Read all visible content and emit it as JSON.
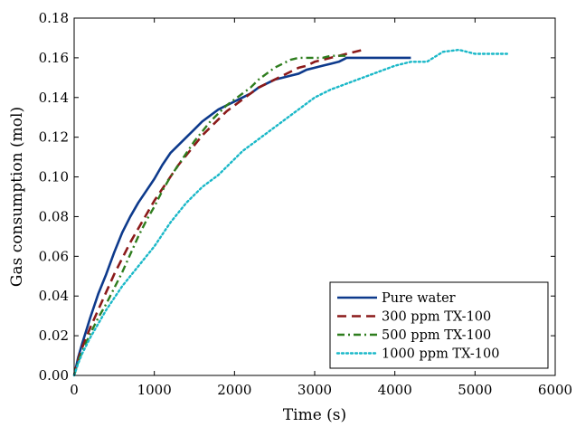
{
  "chart_data": {
    "type": "line",
    "xlabel": "Time (s)",
    "ylabel": "Gas consumption (mol)",
    "xlim": [
      0,
      6000
    ],
    "ylim": [
      0,
      0.18
    ],
    "xticks": [
      0,
      1000,
      2000,
      3000,
      4000,
      5000,
      6000
    ],
    "xtick_labels": [
      "0",
      "1000",
      "2000",
      "3000",
      "4000",
      "5000",
      "6000"
    ],
    "yticks": [
      0,
      0.02,
      0.04,
      0.06,
      0.08,
      0.1,
      0.12,
      0.14,
      0.16,
      0.18
    ],
    "ytick_labels": [
      "0.00",
      "0.02",
      "0.04",
      "0.06",
      "0.08",
      "0.10",
      "0.12",
      "0.14",
      "0.16",
      "0.18"
    ],
    "grid": false,
    "legend_position": "bottom-right",
    "series": [
      {
        "name": "Pure water",
        "color": "#0d3a8c",
        "style": "solid",
        "x": [
          0,
          50,
          100,
          200,
          300,
          400,
          500,
          600,
          700,
          800,
          900,
          1000,
          1100,
          1200,
          1300,
          1400,
          1500,
          1600,
          1700,
          1800,
          1900,
          2000,
          2100,
          2200,
          2300,
          2400,
          2500,
          2600,
          2700,
          2800,
          2900,
          3000,
          3100,
          3200,
          3300,
          3400,
          3500,
          3600,
          3800,
          4000,
          4200
        ],
        "y": [
          0,
          0.009,
          0.016,
          0.029,
          0.041,
          0.051,
          0.062,
          0.072,
          0.08,
          0.087,
          0.093,
          0.099,
          0.106,
          0.112,
          0.116,
          0.12,
          0.124,
          0.128,
          0.131,
          0.134,
          0.136,
          0.138,
          0.14,
          0.142,
          0.145,
          0.147,
          0.149,
          0.15,
          0.151,
          0.152,
          0.154,
          0.155,
          0.156,
          0.157,
          0.158,
          0.16,
          0.16,
          0.16,
          0.16,
          0.16,
          0.16
        ]
      },
      {
        "name": "300 ppm TX-100",
        "color": "#8b1a1a",
        "style": "dashed",
        "x": [
          0,
          50,
          100,
          200,
          300,
          400,
          500,
          600,
          700,
          800,
          900,
          1000,
          1100,
          1200,
          1300,
          1400,
          1500,
          1600,
          1700,
          1800,
          1900,
          2000,
          2100,
          2200,
          2300,
          2400,
          2500,
          2600,
          2700,
          2800,
          2900,
          3000,
          3200,
          3400,
          3600
        ],
        "y": [
          0,
          0.008,
          0.014,
          0.024,
          0.033,
          0.042,
          0.051,
          0.059,
          0.067,
          0.074,
          0.081,
          0.088,
          0.094,
          0.1,
          0.106,
          0.111,
          0.116,
          0.121,
          0.125,
          0.129,
          0.133,
          0.136,
          0.139,
          0.142,
          0.145,
          0.147,
          0.149,
          0.151,
          0.153,
          0.155,
          0.156,
          0.158,
          0.16,
          0.162,
          0.164
        ]
      },
      {
        "name": "500 ppm TX-100",
        "color": "#2e7d1e",
        "style": "dashdot",
        "x": [
          0,
          50,
          100,
          200,
          300,
          400,
          500,
          600,
          700,
          800,
          900,
          1000,
          1100,
          1200,
          1300,
          1400,
          1500,
          1600,
          1700,
          1800,
          1900,
          2000,
          2100,
          2200,
          2300,
          2400,
          2500,
          2600,
          2700,
          2800,
          2900,
          3000,
          3100,
          3200,
          3300,
          3400
        ],
        "y": [
          0,
          0.007,
          0.012,
          0.021,
          0.029,
          0.036,
          0.044,
          0.052,
          0.061,
          0.07,
          0.078,
          0.085,
          0.093,
          0.1,
          0.106,
          0.112,
          0.118,
          0.123,
          0.128,
          0.132,
          0.136,
          0.139,
          0.142,
          0.145,
          0.149,
          0.152,
          0.155,
          0.157,
          0.159,
          0.16,
          0.16,
          0.16,
          0.16,
          0.161,
          0.161,
          0.161
        ]
      },
      {
        "name": "1000 ppm TX-100",
        "color": "#1ab8c8",
        "style": "dotted",
        "x": [
          0,
          50,
          100,
          200,
          300,
          400,
          500,
          600,
          700,
          800,
          900,
          1000,
          1100,
          1200,
          1300,
          1400,
          1500,
          1600,
          1700,
          1800,
          1900,
          2000,
          2100,
          2200,
          2400,
          2600,
          2800,
          3000,
          3200,
          3400,
          3600,
          3800,
          4000,
          4200,
          4400,
          4600,
          4800,
          5000,
          5200,
          5400
        ],
        "y": [
          0,
          0.006,
          0.011,
          0.019,
          0.026,
          0.033,
          0.039,
          0.045,
          0.05,
          0.055,
          0.06,
          0.065,
          0.071,
          0.077,
          0.082,
          0.087,
          0.091,
          0.095,
          0.098,
          0.101,
          0.105,
          0.109,
          0.113,
          0.116,
          0.122,
          0.128,
          0.134,
          0.14,
          0.144,
          0.147,
          0.15,
          0.153,
          0.156,
          0.158,
          0.158,
          0.163,
          0.164,
          0.162,
          0.162,
          0.162
        ]
      }
    ]
  }
}
